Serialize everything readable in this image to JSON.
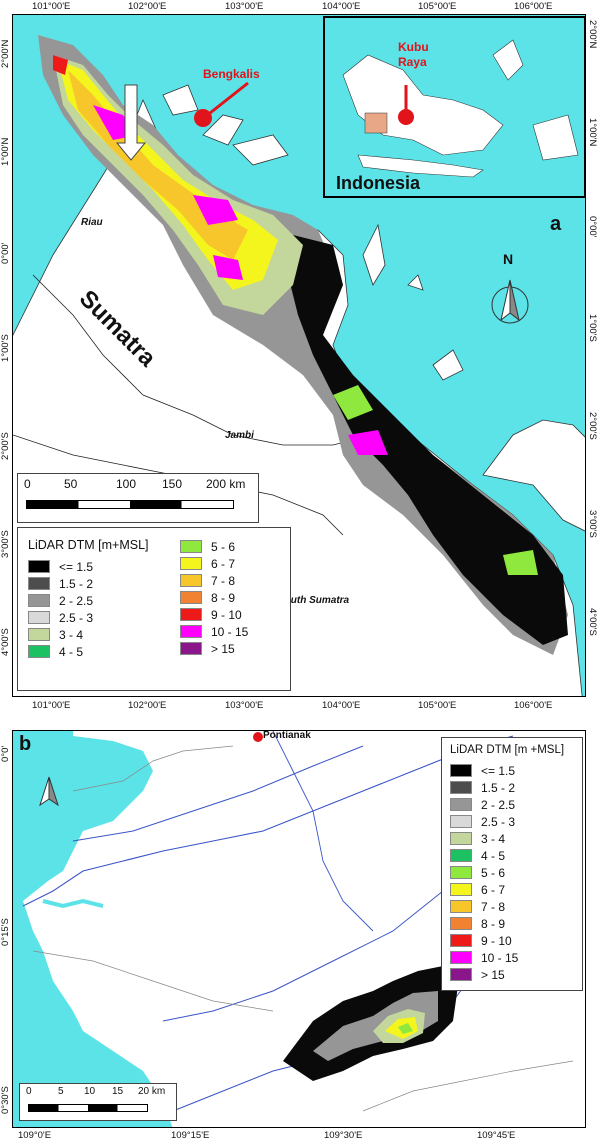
{
  "panel_a": {
    "label": "a",
    "top_ticks": [
      "101°00'E",
      "102°00'E",
      "103°00'E",
      "104°00'E",
      "105°00'E",
      "106°00'E"
    ],
    "bottom_ticks": [
      "101°00'E",
      "102°00'E",
      "103°00'E",
      "104°00'E",
      "105°00'E",
      "106°00'E"
    ],
    "left_ticks": [
      "2°00'N",
      "1°00'N",
      "0°00'",
      "1°00'S",
      "2°00'S",
      "3°00'S",
      "4°00'S"
    ],
    "right_ticks": [
      "2°00'N",
      "1°00'N",
      "0°00'",
      "1°00'S",
      "2°00'S",
      "3°00'S",
      "4°00'S"
    ],
    "labels": {
      "bengkalis": "Bengkalis",
      "kubu_raya": "Kubu Raya",
      "indonesia": "Indonesia",
      "riau": "Riau",
      "sumatra": "Sumatra",
      "jambi": "Jambi",
      "south_sumatra": "South Sumatra",
      "north": "N"
    },
    "scale_bar": {
      "ticks": [
        "0",
        "50",
        "100",
        "150",
        "200 km"
      ]
    },
    "legend": {
      "title": "LiDAR DTM [m+MSL]",
      "col1": [
        {
          "label": "<= 1.5",
          "color": "#000000"
        },
        {
          "label": "1.5 - 2",
          "color": "#4d4d4d"
        },
        {
          "label": "2 - 2.5",
          "color": "#969696"
        },
        {
          "label": "2.5 - 3",
          "color": "#d9d9d9"
        },
        {
          "label": "3 - 4",
          "color": "#c3d69b"
        },
        {
          "label": "4 - 5",
          "color": "#1cc162"
        }
      ],
      "col2": [
        {
          "label": "5 - 6",
          "color": "#8ee83e"
        },
        {
          "label": "6 - 7",
          "color": "#f5f51e"
        },
        {
          "label": "7 - 8",
          "color": "#f7c62a"
        },
        {
          "label": "8 - 9",
          "color": "#f08232"
        },
        {
          "label": "9 - 10",
          "color": "#ee1a1a"
        },
        {
          "label": "10 - 15",
          "color": "#ff00ff"
        },
        {
          "label": "> 15",
          "color": "#8b158b"
        }
      ]
    }
  },
  "panel_b": {
    "label": "b",
    "bottom_ticks": [
      "109°0'E",
      "109°15'E",
      "109°30'E",
      "109°45'E"
    ],
    "left_ticks": [
      "0°0'",
      "0°15'S",
      "0°30'S"
    ],
    "labels": {
      "pontianak": "Pontianak"
    },
    "scale_bar": {
      "ticks": [
        "0",
        "5",
        "10",
        "15",
        "20 km"
      ]
    },
    "legend": {
      "title": "LiDAR DTM [m +MSL]",
      "items": [
        {
          "label": "<= 1.5",
          "color": "#000000"
        },
        {
          "label": "1.5 - 2",
          "color": "#4d4d4d"
        },
        {
          "label": "2 - 2.5",
          "color": "#969696"
        },
        {
          "label": "2.5 - 3",
          "color": "#d9d9d9"
        },
        {
          "label": "3 - 4",
          "color": "#c3d69b"
        },
        {
          "label": "4 - 5",
          "color": "#1cc162"
        },
        {
          "label": "5 - 6",
          "color": "#8ee83e"
        },
        {
          "label": "6 - 7",
          "color": "#f5f51e"
        },
        {
          "label": "7 - 8",
          "color": "#f7c62a"
        },
        {
          "label": "8 - 9",
          "color": "#f08232"
        },
        {
          "label": "9 - 10",
          "color": "#ee1a1a"
        },
        {
          "label": "10 - 15",
          "color": "#ff00ff"
        },
        {
          "label": "> 15",
          "color": "#8b158b"
        }
      ]
    }
  },
  "colors": {
    "water": "#5be3e8",
    "land": "#ffffff",
    "marker": "#e0141a",
    "river": "#3a55c8"
  }
}
